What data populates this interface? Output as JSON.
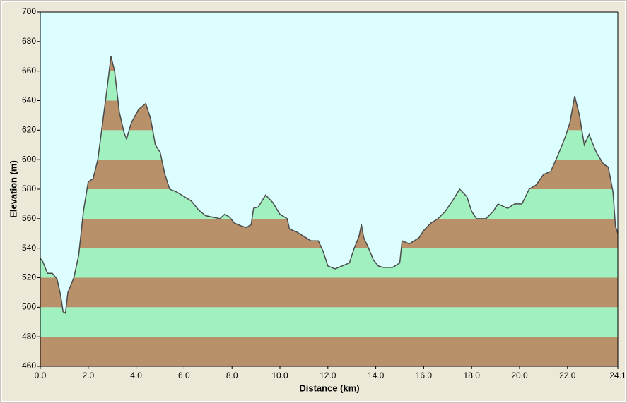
{
  "chart_data": {
    "type": "area",
    "xlabel": "Distance   (km)",
    "ylabel": "Elevation  (m)",
    "xlim": [
      0,
      24.1
    ],
    "ylim": [
      460,
      700
    ],
    "xticks": [
      {
        "value": 0,
        "label": "0.0"
      },
      {
        "value": 2,
        "label": "2.0"
      },
      {
        "value": 4,
        "label": "4.0"
      },
      {
        "value": 6,
        "label": "6.0"
      },
      {
        "value": 8,
        "label": "8.0"
      },
      {
        "value": 10,
        "label": "10.0"
      },
      {
        "value": 12,
        "label": "12.0"
      },
      {
        "value": 14,
        "label": "14.0"
      },
      {
        "value": 16,
        "label": "16.0"
      },
      {
        "value": 18,
        "label": "18.0"
      },
      {
        "value": 20,
        "label": "20.0"
      },
      {
        "value": 22,
        "label": "22.0"
      },
      24.1
    ],
    "yticks": [
      460,
      480,
      500,
      520,
      540,
      560,
      580,
      600,
      620,
      640,
      660,
      680,
      700
    ],
    "background": "#dcfefe",
    "line_color": "#4a4a4a",
    "band_colors": [
      "#b8906a",
      "#a0f0c0"
    ],
    "x": [
      0.0,
      0.1,
      0.3,
      0.5,
      0.7,
      0.85,
      0.95,
      1.05,
      1.15,
      1.4,
      1.6,
      1.8,
      2.0,
      2.2,
      2.4,
      2.6,
      2.8,
      2.95,
      3.1,
      3.3,
      3.5,
      3.6,
      3.8,
      4.1,
      4.4,
      4.6,
      4.8,
      5.0,
      5.2,
      5.4,
      5.7,
      6.0,
      6.3,
      6.6,
      6.9,
      7.2,
      7.5,
      7.7,
      7.9,
      8.1,
      8.4,
      8.6,
      8.8,
      8.9,
      9.1,
      9.4,
      9.7,
      10.0,
      10.3,
      10.4,
      10.7,
      11.0,
      11.3,
      11.6,
      11.8,
      12.0,
      12.3,
      12.6,
      12.9,
      13.1,
      13.3,
      13.4,
      13.5,
      13.7,
      13.9,
      14.1,
      14.3,
      14.7,
      15.0,
      15.1,
      15.4,
      15.8,
      16.0,
      16.3,
      16.6,
      16.9,
      17.2,
      17.5,
      17.8,
      18.0,
      18.2,
      18.6,
      18.9,
      19.1,
      19.5,
      19.8,
      20.1,
      20.4,
      20.7,
      21.0,
      21.3,
      21.6,
      21.9,
      22.1,
      22.3,
      22.5,
      22.7,
      22.9,
      23.2,
      23.5,
      23.7,
      23.9,
      24.0,
      24.1
    ],
    "values": [
      533,
      531,
      523,
      523,
      519,
      508,
      497,
      496,
      510,
      520,
      535,
      565,
      585,
      587,
      600,
      625,
      650,
      670,
      660,
      632,
      618,
      614,
      625,
      634,
      638,
      628,
      610,
      605,
      590,
      580,
      578,
      575,
      572,
      566,
      562,
      561,
      560,
      563,
      561,
      557,
      555,
      554,
      556,
      567,
      568,
      576,
      571,
      563,
      560,
      553,
      551,
      548,
      545,
      545,
      538,
      528,
      526,
      528,
      530,
      540,
      548,
      556,
      547,
      540,
      532,
      528,
      527,
      527,
      530,
      545,
      543,
      547,
      552,
      557,
      560,
      565,
      572,
      580,
      575,
      565,
      560,
      560,
      565,
      570,
      567,
      570,
      570,
      580,
      583,
      590,
      592,
      603,
      615,
      625,
      643,
      630,
      610,
      617,
      605,
      597,
      595,
      578,
      555,
      550
    ]
  }
}
